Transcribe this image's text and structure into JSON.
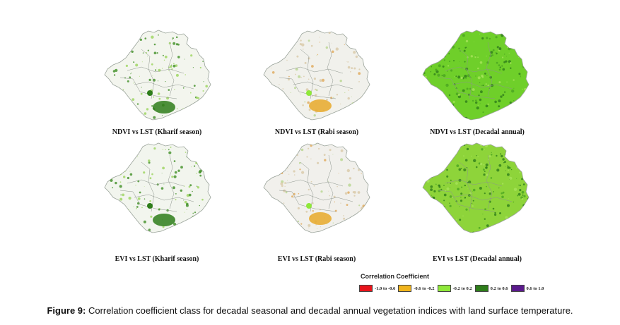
{
  "panels": [
    {
      "caption": "NDVI vs LST (Kharif season)",
      "fill": "#f3f5ee",
      "dominant_class": "0.2 to 0.6"
    },
    {
      "caption": "NDVI vs LST (Rabi season)",
      "fill": "#f1f1ec",
      "dominant_class": "-0.2 to 0.2"
    },
    {
      "caption": "NDVI vs LST (Decadal annual)",
      "fill": "#6fcf2a",
      "dominant_class": "-0.2 to 0.2"
    },
    {
      "caption": "EVI vs LST (Kharif season)",
      "fill": "#f2f5ee",
      "dominant_class": "0.2 to 0.6"
    },
    {
      "caption": "EVI vs LST (Rabi season)",
      "fill": "#f1f0ec",
      "dominant_class": "-0.2 to 0.2"
    },
    {
      "caption": "EVI vs LST (Decadal annual)",
      "fill": "#8ed43a",
      "dominant_class": "-0.2 to 0.2"
    }
  ],
  "legend": {
    "title": "Correlation Coefficient",
    "items": [
      {
        "label": "-1.0 to -0.6",
        "color": "#e8141b"
      },
      {
        "label": "-0.6 to -0.2",
        "color": "#f0b41c"
      },
      {
        "label": "-0.2 to 0.2",
        "color": "#8fe83a"
      },
      {
        "label": "0.2 to 0.6",
        "color": "#2e7d1a"
      },
      {
        "label": "0.6 to 1.0",
        "color": "#5a1a8c"
      }
    ]
  },
  "figure": {
    "label": "Figure 9:",
    "text": " Correlation coefficient class for decadal seasonal and decadal annual vegetation indices with land surface temperature."
  }
}
